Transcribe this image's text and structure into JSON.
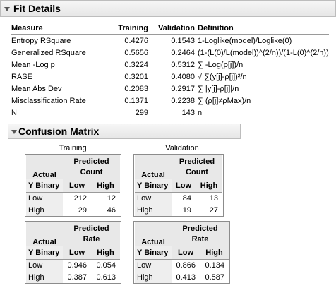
{
  "fit_details": {
    "title": "Fit Details",
    "columns": [
      "Measure",
      "Training",
      "Validation",
      "Definition"
    ],
    "rows": [
      {
        "measure": "Entropy RSquare",
        "training": "0.4276",
        "validation": "0.1543",
        "definition": "1-Loglike(model)/Loglike(0)"
      },
      {
        "measure": "Generalized RSquare",
        "training": "0.5656",
        "validation": "0.2464",
        "definition": "(1-(L(0)/L(model))^(2/n))/(1-L(0)^(2/n))"
      },
      {
        "measure": "Mean -Log p",
        "training": "0.3224",
        "validation": "0.5312",
        "definition": "∑ -Log(ρ[j])/n"
      },
      {
        "measure": "RASE",
        "training": "0.3201",
        "validation": "0.4080",
        "definition": "√ ∑(y[j]-ρ[j])²/n"
      },
      {
        "measure": "Mean Abs Dev",
        "training": "0.2083",
        "validation": "0.2917",
        "definition": "∑ |y[j]-ρ[j]|/n"
      },
      {
        "measure": "Misclassification Rate",
        "training": "0.1371",
        "validation": "0.2238",
        "definition": "∑ (ρ[j]≠ρMax)/n"
      },
      {
        "measure": "N",
        "training": "299",
        "validation": "143",
        "definition": "n"
      }
    ]
  },
  "confusion_matrix": {
    "title": "Confusion Matrix",
    "groups": [
      "Training",
      "Validation"
    ],
    "actual_label": "Actual",
    "y_label": "Y Binary",
    "count_header": [
      "Predicted",
      "Count"
    ],
    "rate_header": [
      "Predicted",
      "Rate"
    ],
    "low_label": "Low",
    "high_label": "High",
    "training_count": {
      "low": [
        "212",
        "12"
      ],
      "high": [
        "29",
        "46"
      ]
    },
    "validation_count": {
      "low": [
        "84",
        "13"
      ],
      "high": [
        "19",
        "27"
      ]
    },
    "training_rate": {
      "low": [
        "0.946",
        "0.054"
      ],
      "high": [
        "0.387",
        "0.613"
      ]
    },
    "validation_rate": {
      "low": [
        "0.866",
        "0.134"
      ],
      "high": [
        "0.413",
        "0.587"
      ]
    }
  }
}
